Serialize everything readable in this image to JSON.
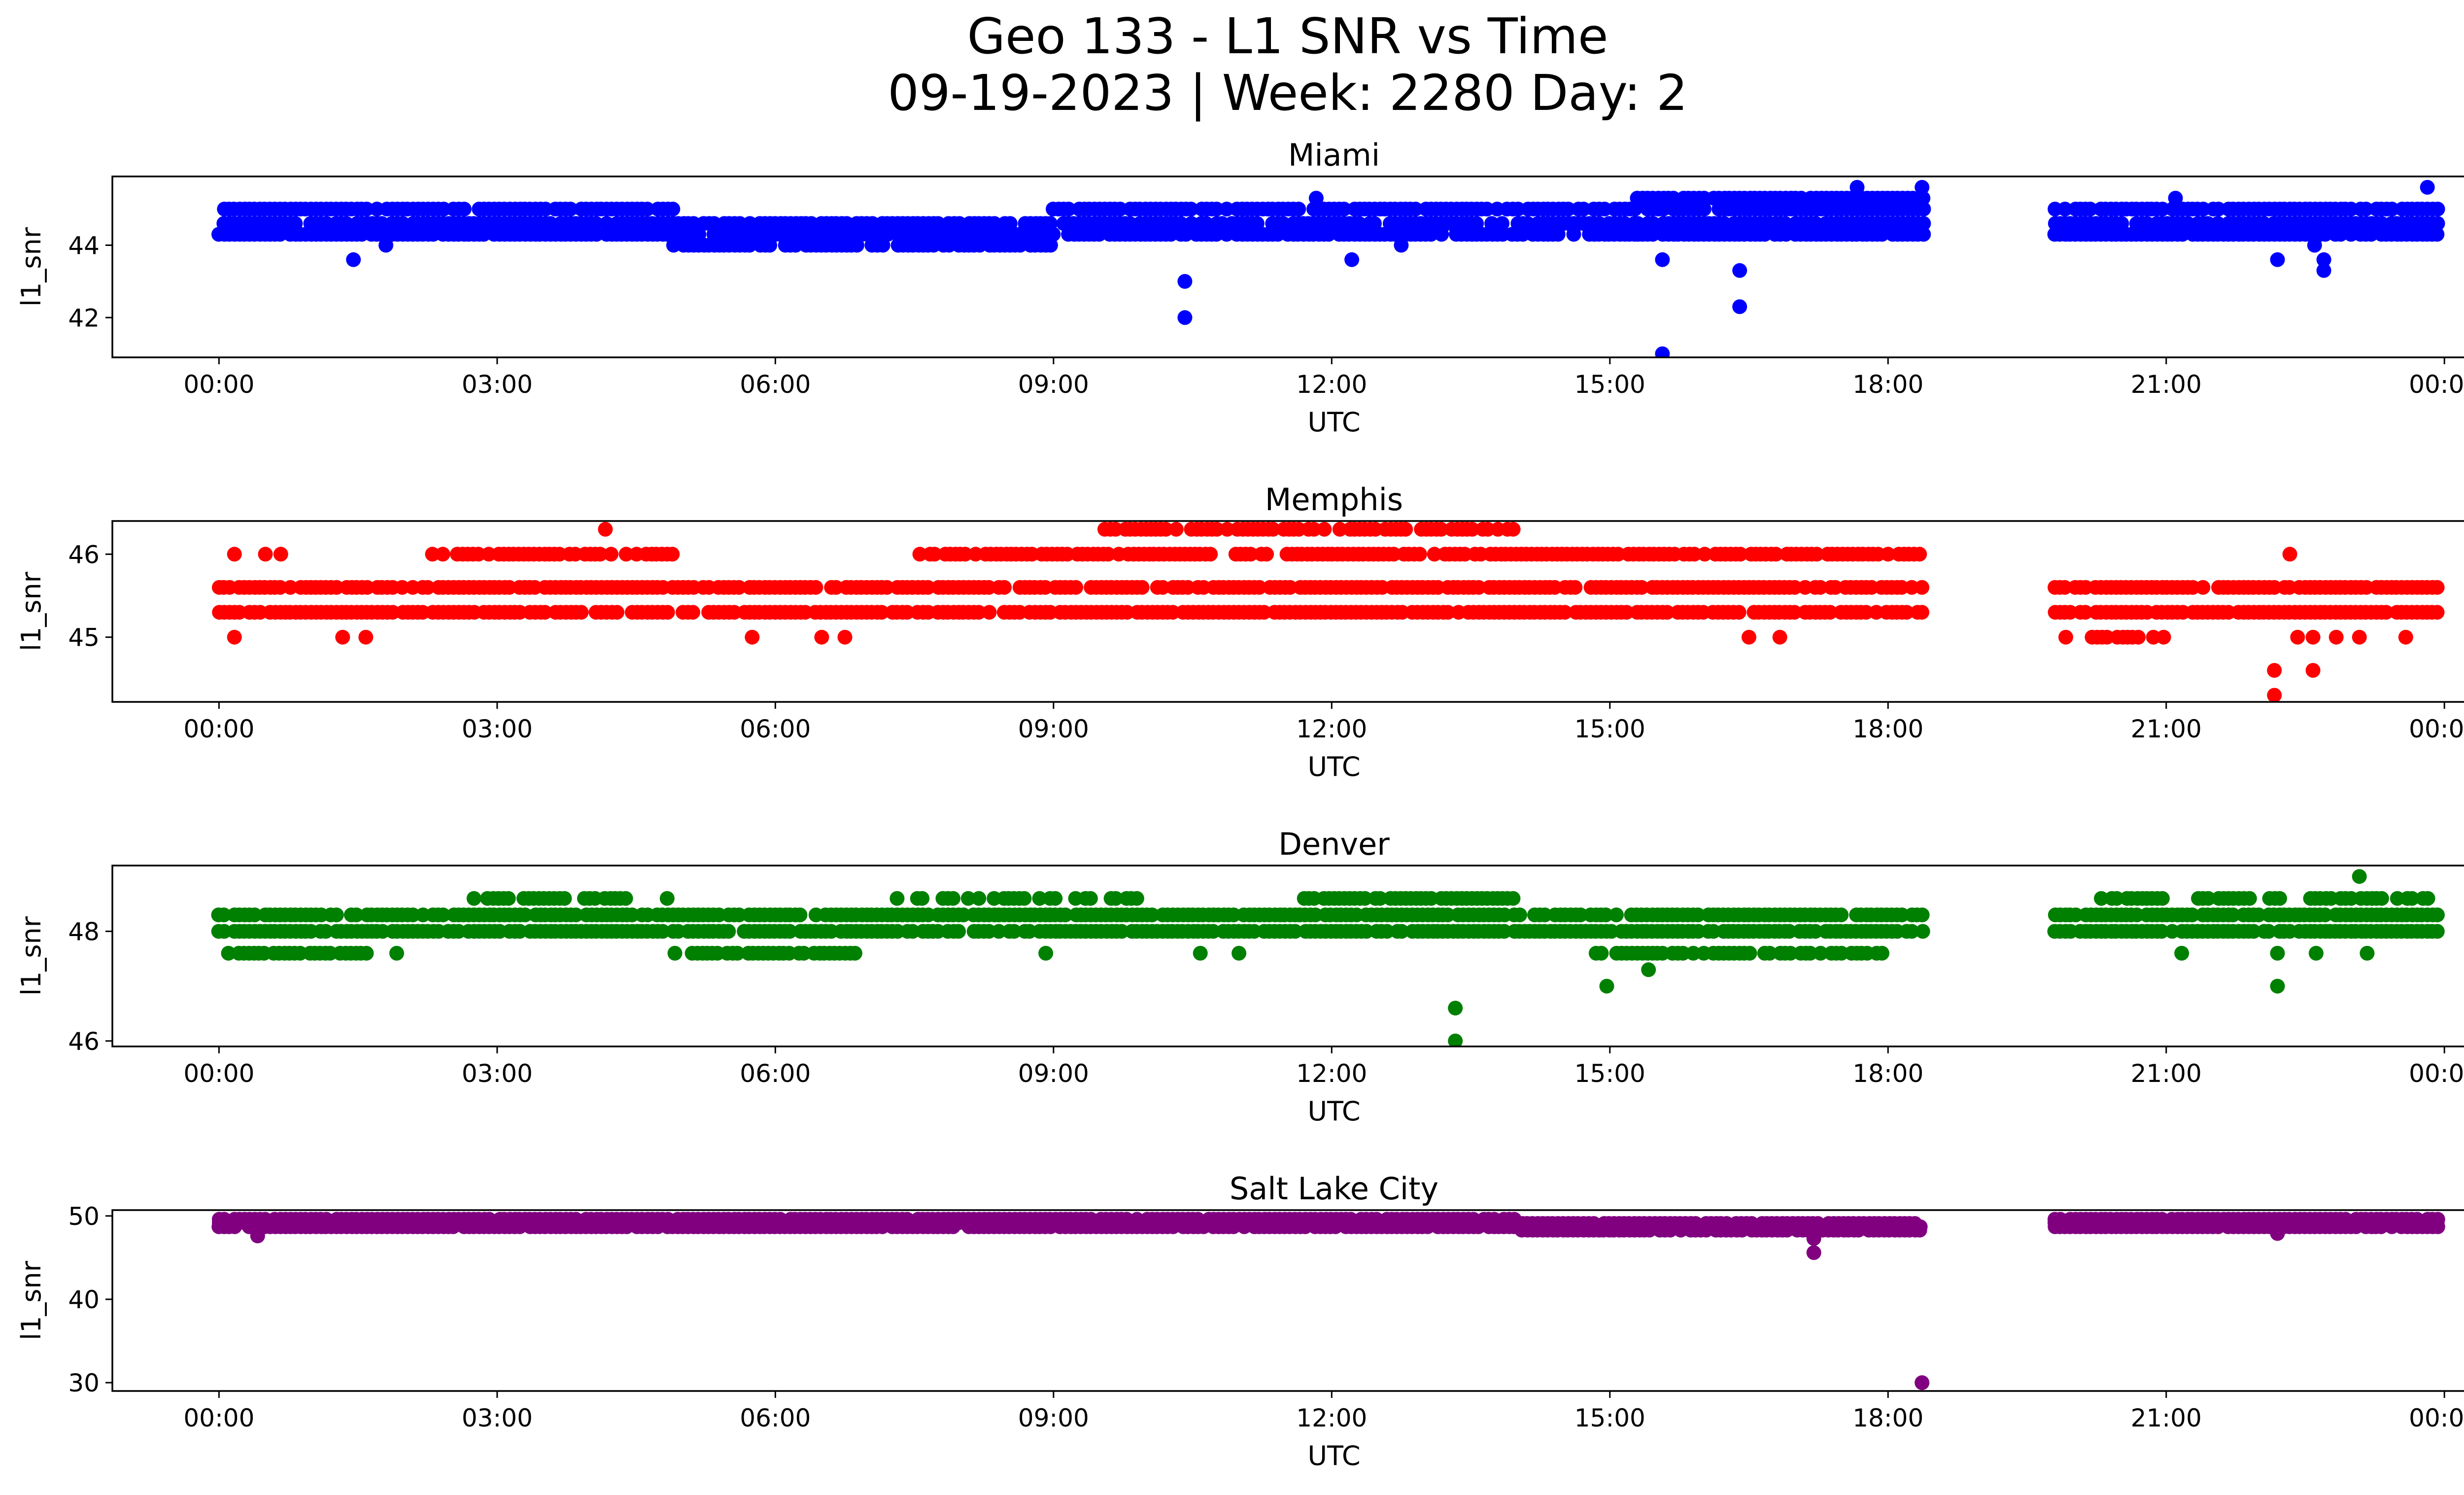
{
  "figure": {
    "title_line1": "Geo 133 - L1 SNR vs Time",
    "title_line2": "09-19-2023 | Week: 2280 Day: 2"
  },
  "chart_data": [
    {
      "type": "scatter",
      "title": "Miami",
      "xlabel": "UTC",
      "ylabel": "l1_snr",
      "color": "#0000ff",
      "x_ticks": [
        "00:00",
        "03:00",
        "06:00",
        "09:00",
        "12:00",
        "15:00",
        "18:00",
        "21:00",
        "00:00"
      ],
      "xlim_hours": [
        -1.15,
        25.2
      ],
      "y_ticks": [
        42,
        44
      ],
      "ylim": [
        40.9,
        45.9
      ],
      "data_gap_utc": [
        "18:23",
        "19:50"
      ],
      "series": [
        {
          "band_segments": [
            {
              "from": 0.0,
              "to": 4.9,
              "levels": [
                44.3,
                44.6,
                45.0
              ],
              "density": 0.9
            },
            {
              "from": 4.9,
              "to": 9.0,
              "levels": [
                44.0,
                44.3,
                44.6
              ],
              "density": 0.85
            },
            {
              "from": 9.0,
              "to": 15.3,
              "levels": [
                44.3,
                44.6,
                45.0
              ],
              "density": 0.85
            },
            {
              "from": 15.3,
              "to": 18.38,
              "levels": [
                44.3,
                44.6,
                45.0,
                45.3
              ],
              "density": 0.9
            },
            {
              "from": 19.8,
              "to": 23.95,
              "levels": [
                44.3,
                44.6,
                45.0
              ],
              "density": 0.9
            }
          ],
          "points": [
            {
              "x": "01:27",
              "y": 43.6
            },
            {
              "x": "01:48",
              "y": 44.0
            },
            {
              "x": "10:25",
              "y": 43.0
            },
            {
              "x": "10:25",
              "y": 42.0
            },
            {
              "x": "12:13",
              "y": 43.6
            },
            {
              "x": "12:45",
              "y": 44.0
            },
            {
              "x": "15:34",
              "y": 43.6
            },
            {
              "x": "15:34",
              "y": 41.0
            },
            {
              "x": "16:24",
              "y": 43.3
            },
            {
              "x": "16:24",
              "y": 42.3
            },
            {
              "x": "22:12",
              "y": 43.6
            },
            {
              "x": "22:36",
              "y": 44.0
            },
            {
              "x": "22:42",
              "y": 43.6
            },
            {
              "x": "22:42",
              "y": 43.3
            },
            {
              "x": "17:40",
              "y": 45.6
            },
            {
              "x": "18:22",
              "y": 45.6
            },
            {
              "x": "23:49",
              "y": 45.6
            },
            {
              "x": "11:50",
              "y": 45.3
            },
            {
              "x": "21:06",
              "y": 45.3
            }
          ]
        }
      ]
    },
    {
      "type": "scatter",
      "title": "Memphis",
      "xlabel": "UTC",
      "ylabel": "l1_snr",
      "color": "#ff0000",
      "x_ticks": [
        "00:00",
        "03:00",
        "06:00",
        "09:00",
        "12:00",
        "15:00",
        "18:00",
        "21:00",
        "00:00"
      ],
      "xlim_hours": [
        -1.15,
        25.2
      ],
      "y_ticks": [
        45,
        46
      ],
      "ylim": [
        44.22,
        46.4
      ],
      "data_gap_utc": [
        "18:23",
        "19:50"
      ],
      "series": [
        {
          "band_segments": [
            {
              "from": 0.0,
              "to": 18.38,
              "levels": [
                45.3,
                45.6
              ],
              "density": 0.88
            },
            {
              "from": 19.8,
              "to": 23.95,
              "levels": [
                45.3,
                45.6
              ],
              "density": 0.9
            },
            {
              "from": 2.3,
              "to": 4.9,
              "levels": [
                46.0
              ],
              "density": 0.75
            },
            {
              "from": 7.5,
              "to": 18.38,
              "levels": [
                46.0
              ],
              "density": 0.8
            },
            {
              "from": 9.5,
              "to": 14.1,
              "levels": [
                46.3
              ],
              "density": 0.75
            },
            {
              "from": 20.2,
              "to": 21.0,
              "levels": [
                45.0
              ],
              "density": 0.6
            }
          ],
          "points": [
            {
              "x": "00:10",
              "y": 45.0
            },
            {
              "x": "00:10",
              "y": 46.0
            },
            {
              "x": "00:30",
              "y": 46.0
            },
            {
              "x": "00:40",
              "y": 46.0
            },
            {
              "x": "01:20",
              "y": 45.0
            },
            {
              "x": "01:35",
              "y": 45.0
            },
            {
              "x": "04:10",
              "y": 46.3
            },
            {
              "x": "05:45",
              "y": 45.0
            },
            {
              "x": "06:30",
              "y": 45.0
            },
            {
              "x": "06:45",
              "y": 45.0
            },
            {
              "x": "16:30",
              "y": 45.0
            },
            {
              "x": "16:50",
              "y": 45.0
            },
            {
              "x": "19:55",
              "y": 45.0
            },
            {
              "x": "22:10",
              "y": 44.6
            },
            {
              "x": "22:10",
              "y": 44.3
            },
            {
              "x": "22:20",
              "y": 46.0
            },
            {
              "x": "22:25",
              "y": 45.0
            },
            {
              "x": "22:35",
              "y": 44.6
            },
            {
              "x": "22:35",
              "y": 45.0
            },
            {
              "x": "22:50",
              "y": 45.0
            },
            {
              "x": "23:05",
              "y": 45.0
            },
            {
              "x": "23:35",
              "y": 45.0
            }
          ]
        }
      ]
    },
    {
      "type": "scatter",
      "title": "Denver",
      "xlabel": "UTC",
      "ylabel": "l1_snr",
      "color": "#008000",
      "x_ticks": [
        "00:00",
        "03:00",
        "06:00",
        "09:00",
        "12:00",
        "15:00",
        "18:00",
        "21:00",
        "00:00"
      ],
      "xlim_hours": [
        -1.15,
        25.2
      ],
      "y_ticks": [
        46,
        48
      ],
      "ylim": [
        45.9,
        49.2
      ],
      "data_gap_utc": [
        "18:23",
        "19:50"
      ],
      "series": [
        {
          "band_segments": [
            {
              "from": 0.0,
              "to": 18.38,
              "levels": [
                48.0,
                48.3
              ],
              "density": 0.9
            },
            {
              "from": 19.8,
              "to": 23.95,
              "levels": [
                48.0,
                48.3
              ],
              "density": 0.9
            },
            {
              "from": 0.1,
              "to": 1.6,
              "levels": [
                47.6
              ],
              "density": 0.8
            },
            {
              "from": 5.1,
              "to": 6.9,
              "levels": [
                47.6
              ],
              "density": 0.85
            },
            {
              "from": 14.8,
              "to": 18.0,
              "levels": [
                47.6
              ],
              "density": 0.7
            },
            {
              "from": 2.9,
              "to": 4.4,
              "levels": [
                48.6
              ],
              "density": 0.85
            },
            {
              "from": 7.2,
              "to": 10.0,
              "levels": [
                48.6
              ],
              "density": 0.5
            },
            {
              "from": 11.7,
              "to": 14.0,
              "levels": [
                48.6
              ],
              "density": 0.85
            },
            {
              "from": 20.3,
              "to": 23.9,
              "levels": [
                48.6
              ],
              "density": 0.6
            }
          ],
          "points": [
            {
              "x": "01:55",
              "y": 47.6
            },
            {
              "x": "02:45",
              "y": 48.6
            },
            {
              "x": "04:50",
              "y": 48.6
            },
            {
              "x": "04:55",
              "y": 47.6
            },
            {
              "x": "08:55",
              "y": 47.6
            },
            {
              "x": "10:35",
              "y": 47.6
            },
            {
              "x": "11:00",
              "y": 47.6
            },
            {
              "x": "13:20",
              "y": 46.6
            },
            {
              "x": "13:20",
              "y": 46.0
            },
            {
              "x": "14:58",
              "y": 47.0
            },
            {
              "x": "15:25",
              "y": 47.3
            },
            {
              "x": "21:10",
              "y": 47.6
            },
            {
              "x": "22:12",
              "y": 47.6
            },
            {
              "x": "22:12",
              "y": 47.0
            },
            {
              "x": "22:37",
              "y": 47.6
            },
            {
              "x": "23:10",
              "y": 47.6
            },
            {
              "x": "23:05",
              "y": 49.0
            }
          ]
        }
      ]
    },
    {
      "type": "scatter",
      "title": "Salt Lake City",
      "xlabel": "UTC",
      "ylabel": "l1_snr",
      "color": "#800080",
      "x_ticks": [
        "00:00",
        "03:00",
        "06:00",
        "09:00",
        "12:00",
        "15:00",
        "18:00",
        "21:00",
        "00:00"
      ],
      "xlim_hours": [
        -1.15,
        25.2
      ],
      "y_ticks": [
        30,
        40,
        50
      ],
      "ylim": [
        29.0,
        50.7
      ],
      "data_gap_utc": [
        "18:23",
        "19:50"
      ],
      "series": [
        {
          "band_segments": [
            {
              "from": 0.0,
              "to": 14.0,
              "levels": [
                48.7,
                49.2,
                49.6
              ],
              "density": 0.95
            },
            {
              "from": 14.0,
              "to": 18.38,
              "levels": [
                48.3,
                48.7,
                49.1
              ],
              "density": 0.95
            },
            {
              "from": 19.8,
              "to": 23.95,
              "levels": [
                48.7,
                49.2,
                49.6
              ],
              "density": 0.95
            }
          ],
          "points": [
            {
              "x": "00:25",
              "y": 47.6
            },
            {
              "x": "17:12",
              "y": 47.3
            },
            {
              "x": "17:12",
              "y": 45.6
            },
            {
              "x": "18:22",
              "y": 30.0
            },
            {
              "x": "22:12",
              "y": 47.9
            }
          ]
        }
      ]
    }
  ]
}
